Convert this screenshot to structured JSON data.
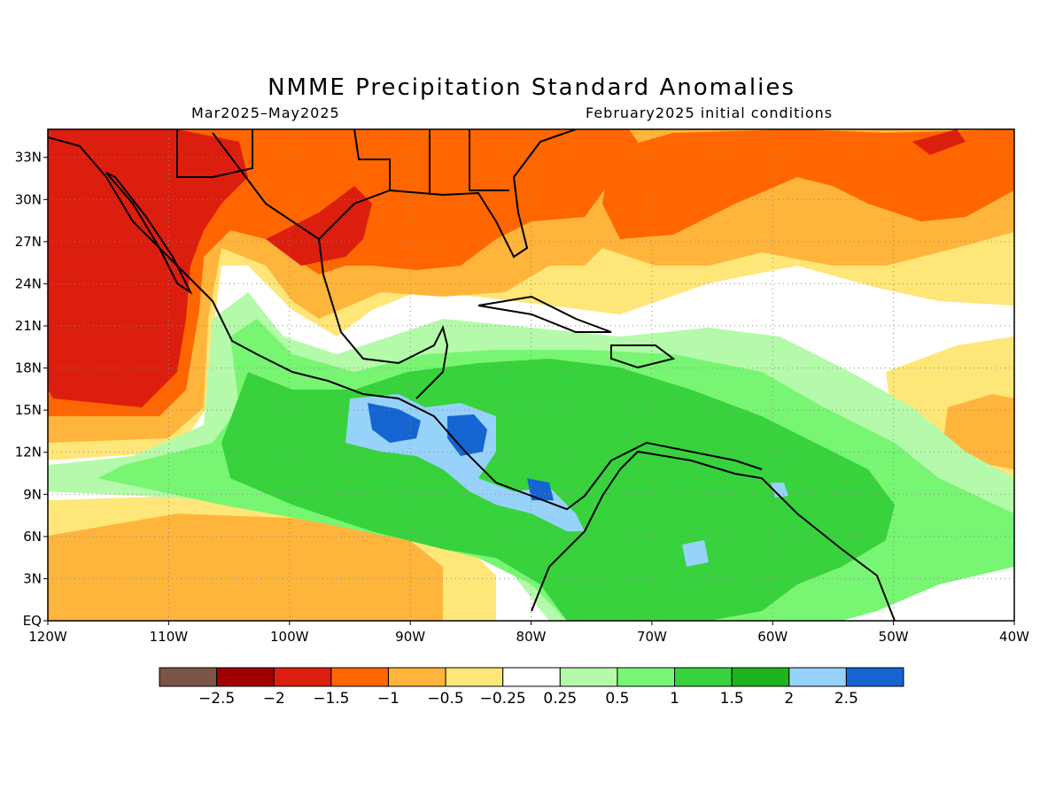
{
  "title": "NMME Precipitation Standard Anomalies",
  "subtitle_left": "Mar2025–May2025",
  "subtitle_right": "February2025 initial conditions",
  "map": {
    "lon_range": [
      -120,
      -40
    ],
    "lat_range": [
      0,
      35
    ],
    "lon_ticks": [
      {
        "value": -120,
        "label": "120W"
      },
      {
        "value": -110,
        "label": "110W"
      },
      {
        "value": -100,
        "label": "100W"
      },
      {
        "value": -90,
        "label": "90W"
      },
      {
        "value": -80,
        "label": "80W"
      },
      {
        "value": -70,
        "label": "70W"
      },
      {
        "value": -60,
        "label": "60W"
      },
      {
        "value": -50,
        "label": "50W"
      },
      {
        "value": -40,
        "label": "40W"
      }
    ],
    "lat_ticks": [
      {
        "value": 0,
        "label": "EQ"
      },
      {
        "value": 3,
        "label": "3N"
      },
      {
        "value": 6,
        "label": "6N"
      },
      {
        "value": 9,
        "label": "9N"
      },
      {
        "value": 12,
        "label": "12N"
      },
      {
        "value": 15,
        "label": "15N"
      },
      {
        "value": 18,
        "label": "18N"
      },
      {
        "value": 21,
        "label": "21N"
      },
      {
        "value": 24,
        "label": "24N"
      },
      {
        "value": 27,
        "label": "27N"
      },
      {
        "value": 30,
        "label": "30N"
      },
      {
        "value": 33,
        "label": "33N"
      }
    ],
    "grid": "dotted"
  },
  "colorbar": {
    "colors": [
      "#7a5548",
      "#a00000",
      "#dc1e0e",
      "#ff6600",
      "#ffb43c",
      "#ffe678",
      "#ffffff",
      "#b4faaa",
      "#78f573",
      "#37d23c",
      "#1eb41e",
      "#96d2fa",
      "#1464d2"
    ],
    "labels": [
      "−2.5",
      "−2",
      "−1.5",
      "−1",
      "−0.5",
      "−0.25",
      "0.25",
      "0.5",
      "1",
      "1.5",
      "2",
      "2.5"
    ]
  }
}
